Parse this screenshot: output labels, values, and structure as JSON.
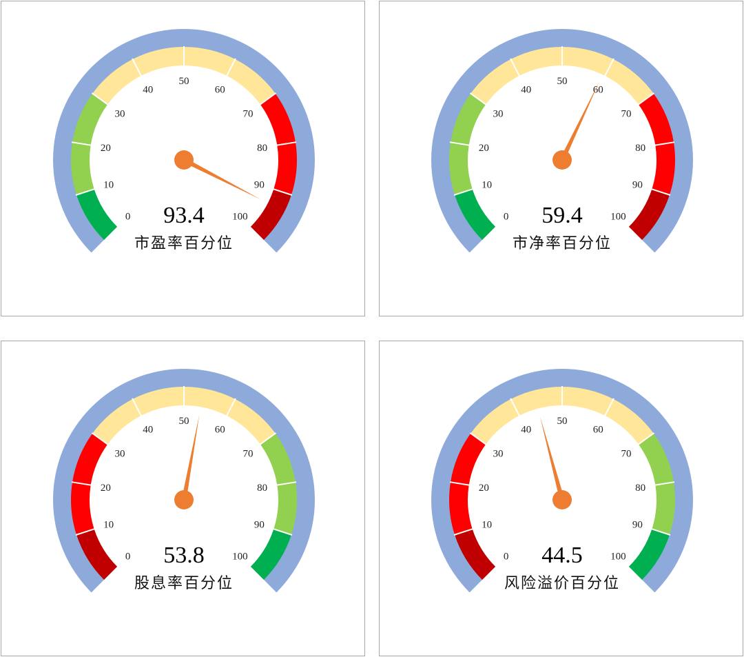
{
  "chart_data": [
    {
      "type": "gauge",
      "label": "市盈率百分位",
      "value": 93.4,
      "range": [
        0,
        100
      ],
      "ticks": [
        "0",
        "10",
        "20",
        "30",
        "40",
        "50",
        "60",
        "70",
        "80",
        "90",
        "100"
      ],
      "bands": [
        {
          "from": 0,
          "to": 10,
          "color": "#00b050"
        },
        {
          "from": 10,
          "to": 30,
          "color": "#92d050"
        },
        {
          "from": 30,
          "to": 70,
          "color": "#ffe699"
        },
        {
          "from": 70,
          "to": 90,
          "color": "#ff0000"
        },
        {
          "from": 90,
          "to": 100,
          "color": "#c00000"
        }
      ]
    },
    {
      "type": "gauge",
      "label": "市净率百分位",
      "value": 59.4,
      "range": [
        0,
        100
      ],
      "ticks": [
        "0",
        "10",
        "20",
        "30",
        "40",
        "50",
        "60",
        "70",
        "80",
        "90",
        "100"
      ],
      "bands": [
        {
          "from": 0,
          "to": 10,
          "color": "#00b050"
        },
        {
          "from": 10,
          "to": 30,
          "color": "#92d050"
        },
        {
          "from": 30,
          "to": 70,
          "color": "#ffe699"
        },
        {
          "from": 70,
          "to": 90,
          "color": "#ff0000"
        },
        {
          "from": 90,
          "to": 100,
          "color": "#c00000"
        }
      ]
    },
    {
      "type": "gauge",
      "label": "股息率百分位",
      "value": 53.8,
      "range": [
        0,
        100
      ],
      "ticks": [
        "0",
        "10",
        "20",
        "30",
        "40",
        "50",
        "60",
        "70",
        "80",
        "90",
        "100"
      ],
      "bands": [
        {
          "from": 0,
          "to": 10,
          "color": "#c00000"
        },
        {
          "from": 10,
          "to": 30,
          "color": "#ff0000"
        },
        {
          "from": 30,
          "to": 70,
          "color": "#ffe699"
        },
        {
          "from": 70,
          "to": 90,
          "color": "#92d050"
        },
        {
          "from": 90,
          "to": 100,
          "color": "#00b050"
        }
      ]
    },
    {
      "type": "gauge",
      "label": "风险溢价百分位",
      "value": 44.5,
      "range": [
        0,
        100
      ],
      "ticks": [
        "0",
        "10",
        "20",
        "30",
        "40",
        "50",
        "60",
        "70",
        "80",
        "90",
        "100"
      ],
      "bands": [
        {
          "from": 0,
          "to": 10,
          "color": "#c00000"
        },
        {
          "from": 10,
          "to": 30,
          "color": "#ff0000"
        },
        {
          "from": 30,
          "to": 70,
          "color": "#ffe699"
        },
        {
          "from": 70,
          "to": 90,
          "color": "#92d050"
        },
        {
          "from": 90,
          "to": 100,
          "color": "#00b050"
        }
      ]
    }
  ],
  "colors": {
    "outer_ring": "#8eaadb",
    "needle": "#ed7d31",
    "segment_divider": "#ffffff"
  }
}
